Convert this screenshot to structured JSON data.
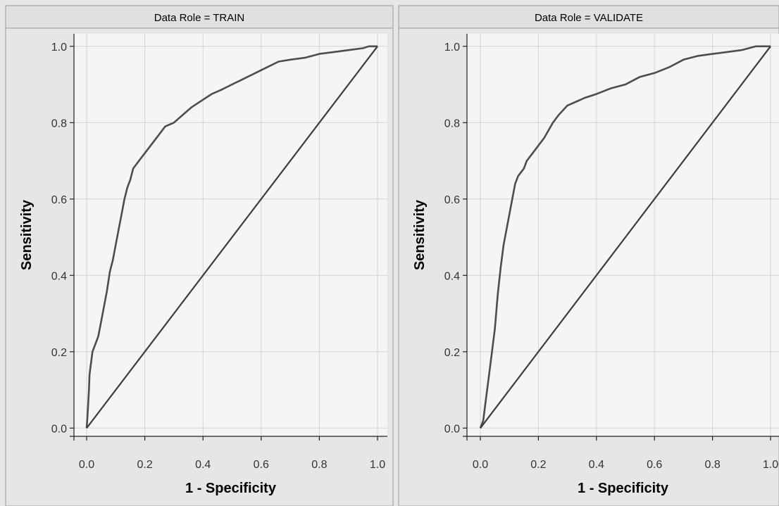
{
  "chart_data": [
    {
      "type": "line",
      "title": "Data Role = TRAIN",
      "xlabel": "1 - Specificity",
      "ylabel": "Sensitivity",
      "xlim": [
        0,
        1
      ],
      "ylim": [
        0,
        1
      ],
      "xticks": [
        "0.0",
        "0.2",
        "0.4",
        "0.6",
        "0.8",
        "1.0"
      ],
      "yticks": [
        "0.0",
        "0.2",
        "0.4",
        "0.6",
        "0.8",
        "1.0"
      ],
      "grid": true,
      "series": [
        {
          "x": [
            0,
            0.002,
            0.005,
            0.008,
            0.01,
            0.02,
            0.03,
            0.04,
            0.05,
            0.06,
            0.07,
            0.08,
            0.09,
            0.1,
            0.11,
            0.12,
            0.13,
            0.14,
            0.15,
            0.16,
            0.17,
            0.18,
            0.2,
            0.22,
            0.25,
            0.27,
            0.3,
            0.33,
            0.36,
            0.4,
            0.43,
            0.46,
            0.5,
            0.54,
            0.58,
            0.62,
            0.66,
            0.7,
            0.75,
            0.8,
            0.85,
            0.9,
            0.95,
            0.97,
            1.0
          ],
          "y": [
            0,
            0.02,
            0.06,
            0.1,
            0.14,
            0.2,
            0.22,
            0.24,
            0.28,
            0.32,
            0.36,
            0.41,
            0.44,
            0.48,
            0.52,
            0.56,
            0.6,
            0.63,
            0.65,
            0.68,
            0.69,
            0.7,
            0.72,
            0.74,
            0.77,
            0.79,
            0.8,
            0.82,
            0.84,
            0.86,
            0.875,
            0.885,
            0.9,
            0.915,
            0.93,
            0.945,
            0.96,
            0.965,
            0.97,
            0.98,
            0.985,
            0.99,
            0.995,
            1.0,
            1.0
          ]
        },
        {
          "x": [
            0,
            1
          ],
          "y": [
            0,
            1
          ]
        }
      ]
    },
    {
      "type": "line",
      "title": "Data Role = VALIDATE",
      "xlabel": "1 - Specificity",
      "ylabel": "Sensitivity",
      "xlim": [
        0,
        1
      ],
      "ylim": [
        0,
        1
      ],
      "xticks": [
        "0.0",
        "0.2",
        "0.4",
        "0.6",
        "0.8",
        "1.0"
      ],
      "yticks": [
        "0.0",
        "0.2",
        "0.4",
        "0.6",
        "0.8",
        "1.0"
      ],
      "grid": true,
      "series": [
        {
          "x": [
            0,
            0.01,
            0.02,
            0.03,
            0.04,
            0.05,
            0.06,
            0.07,
            0.08,
            0.09,
            0.1,
            0.11,
            0.12,
            0.13,
            0.14,
            0.15,
            0.16,
            0.18,
            0.2,
            0.22,
            0.25,
            0.27,
            0.3,
            0.33,
            0.36,
            0.4,
            0.45,
            0.5,
            0.55,
            0.6,
            0.65,
            0.7,
            0.75,
            0.8,
            0.85,
            0.9,
            0.95,
            1.0
          ],
          "y": [
            0,
            0.02,
            0.08,
            0.14,
            0.2,
            0.26,
            0.35,
            0.42,
            0.48,
            0.52,
            0.56,
            0.6,
            0.64,
            0.66,
            0.67,
            0.68,
            0.7,
            0.72,
            0.74,
            0.76,
            0.8,
            0.82,
            0.845,
            0.855,
            0.865,
            0.875,
            0.89,
            0.9,
            0.92,
            0.93,
            0.945,
            0.965,
            0.975,
            0.98,
            0.985,
            0.99,
            1.0,
            1.0
          ]
        },
        {
          "x": [
            0,
            1
          ],
          "y": [
            0,
            1
          ]
        }
      ]
    }
  ],
  "colors": {
    "background": "#e6e6e6",
    "plot_area": "#f5f5f5",
    "grid": "#d4d4d4",
    "curve": "#4d4d4d",
    "diagonal": "#3c3c3c",
    "header": "#e0e0e0",
    "border": "#9a9a9a"
  }
}
